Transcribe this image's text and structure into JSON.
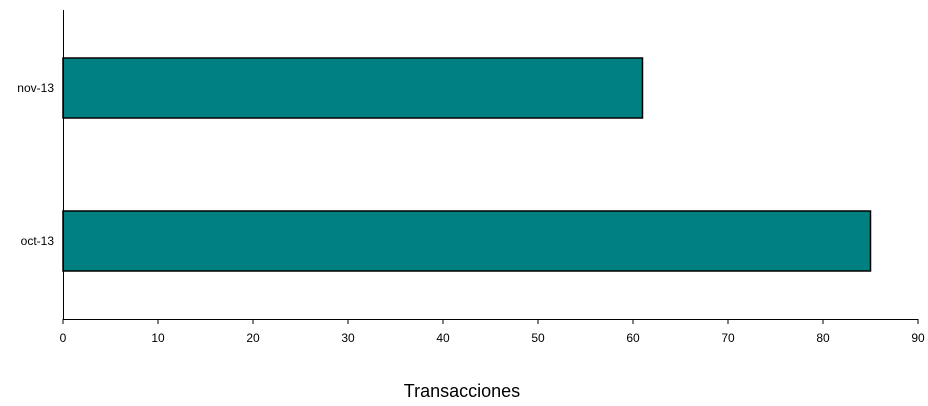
{
  "chart_data": {
    "type": "bar",
    "orientation": "horizontal",
    "categories": [
      "nov-13",
      "oct-13"
    ],
    "series": [
      {
        "values": [
          61,
          85
        ]
      }
    ],
    "xlabel": "Transacciones",
    "ylabel": "",
    "title": "",
    "xlim": [
      0,
      90
    ],
    "xticks": [
      "0",
      "10",
      "20",
      "30",
      "40",
      "50",
      "60",
      "70",
      "80",
      "90"
    ],
    "grid": false,
    "legend": "none",
    "bar_color": "#008080",
    "bar_edge_color": "#000000"
  }
}
